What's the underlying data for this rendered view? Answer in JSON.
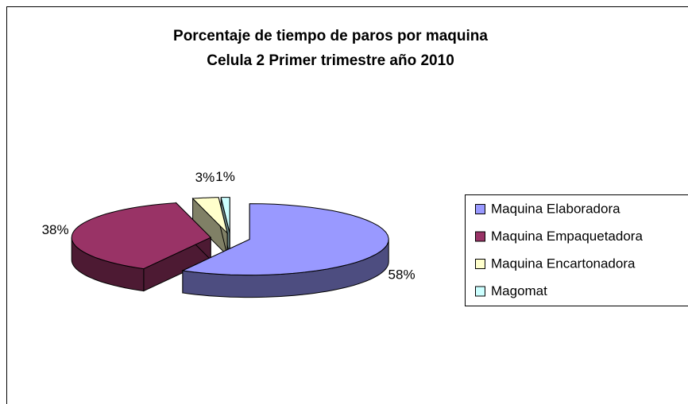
{
  "chart_data": {
    "type": "pie3d",
    "title": "Porcentaje de tiempo de paros por maquina",
    "subtitle": "Celula 2 Primer trimestre año 2010",
    "categories": [
      "Maquina Elaboradora",
      "Maquina Empaquetadora",
      "Maquina Encartonadora",
      "Magomat"
    ],
    "values": [
      58,
      38,
      3,
      1
    ],
    "value_labels": [
      "58%",
      "38%",
      "3%",
      "1%"
    ],
    "colors": [
      "#9999ff",
      "#993366",
      "#ffffcc",
      "#ccffff"
    ],
    "legend": "right"
  }
}
